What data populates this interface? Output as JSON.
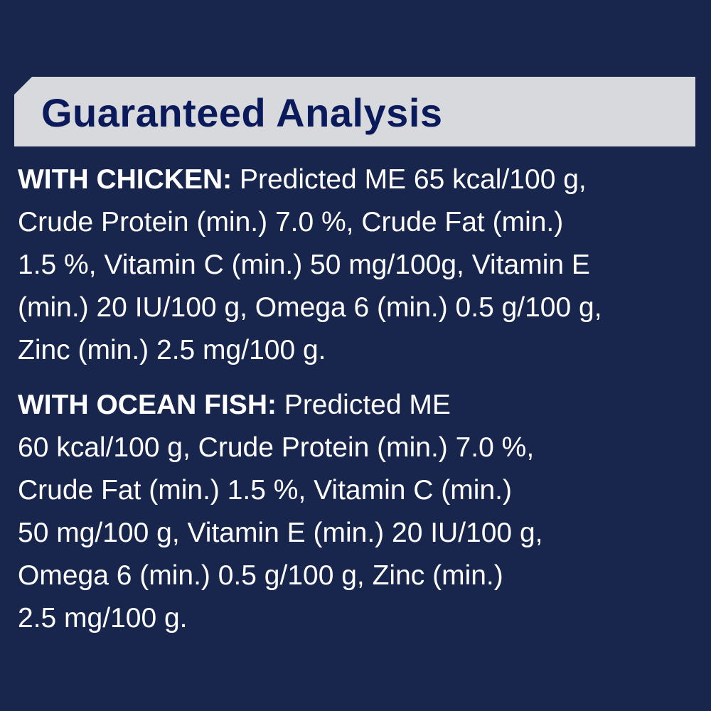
{
  "title": "Guaranteed Analysis",
  "colors": {
    "background": "#18264d",
    "banner": "#d8d9dc",
    "title_text": "#0b1a5a",
    "body_text": "#ffffff"
  },
  "sections": [
    {
      "label": "WITH CHICKEN:",
      "lines": [
        " Predicted ME 65 kcal/100 g,",
        "Crude Protein (min.) 7.0 %, Crude Fat (min.)",
        "1.5 %, Vitamin C (min.) 50 mg/100g, Vitamin E",
        "(min.) 20 IU/100 g, Omega 6 (min.) 0.5 g/100 g,",
        "Zinc (min.) 2.5 mg/100 g."
      ]
    },
    {
      "label": "WITH OCEAN FISH:",
      "lines": [
        " Predicted ME",
        "60 kcal/100 g, Crude Protein (min.) 7.0 %,",
        "Crude Fat (min.) 1.5 %, Vitamin C (min.)",
        "50 mg/100 g, Vitamin E (min.) 20 IU/100 g,",
        "Omega 6 (min.) 0.5 g/100 g, Zinc (min.)",
        "2.5 mg/100 g."
      ]
    }
  ]
}
